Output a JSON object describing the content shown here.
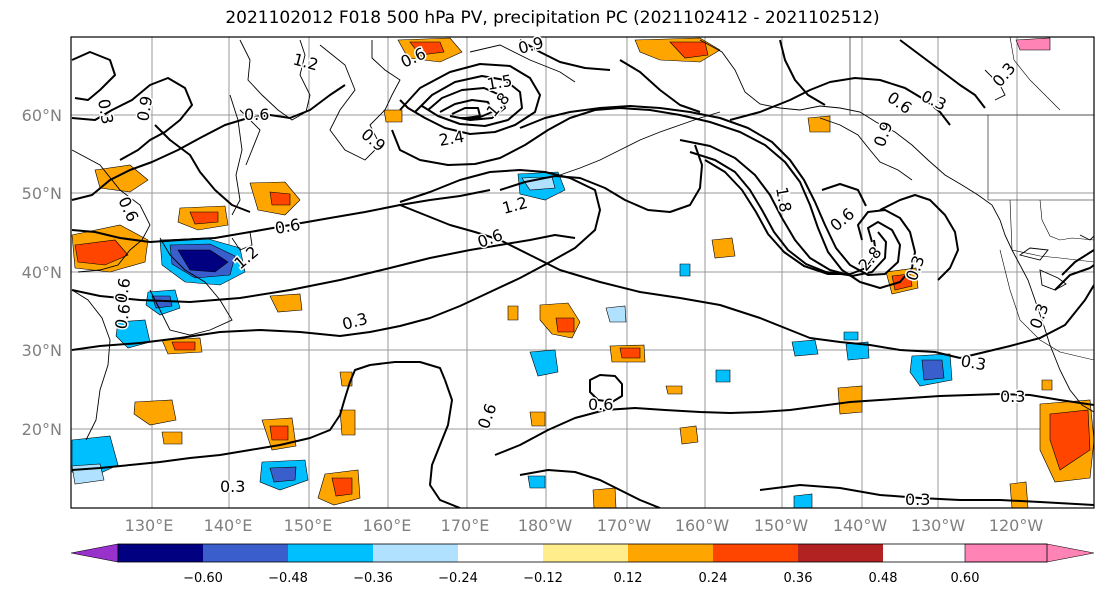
{
  "title": "2021102012 F018 500 hPa PV, precipitation PC (2021102412 - 2021102512)",
  "lat_labels": [
    "60°N",
    "50°N",
    "40°N",
    "30°N",
    "20°N"
  ],
  "lon_labels": [
    "130°E",
    "140°E",
    "150°E",
    "160°E",
    "170°E",
    "180°W",
    "170°W",
    "160°W",
    "150°W",
    "140°W",
    "130°W",
    "120°W"
  ],
  "contour_labels": [
    "0.3",
    "0.9",
    "1.2",
    "0.6",
    "0.9",
    "0.6",
    "1.5",
    "2.4",
    "1.8",
    "0.9",
    "0.6",
    "0.6",
    "0.3",
    "0.6",
    "1.2",
    "0.6",
    "1.2",
    "0.6",
    "0.3",
    "0.6",
    "1.8",
    "0.6",
    "2.8",
    "0.3",
    "0.3",
    "0.3",
    "0.3",
    "0.3",
    "0.6",
    "0.6",
    "0.3",
    "0.3",
    "0.9"
  ],
  "colorbar": {
    "ticks": [
      "−0.60",
      "−0.48",
      "−0.36",
      "−0.24",
      "−0.12",
      "0.12",
      "0.24",
      "0.36",
      "0.48",
      "0.60"
    ],
    "colors": [
      "#9932cc",
      "#000080",
      "#3a5fcd",
      "#00bfff",
      "#b0e2ff",
      "#ffffff",
      "#ffec8b",
      "#ffa500",
      "#ff4500",
      "#b22222",
      "#ff83b4"
    ]
  }
}
